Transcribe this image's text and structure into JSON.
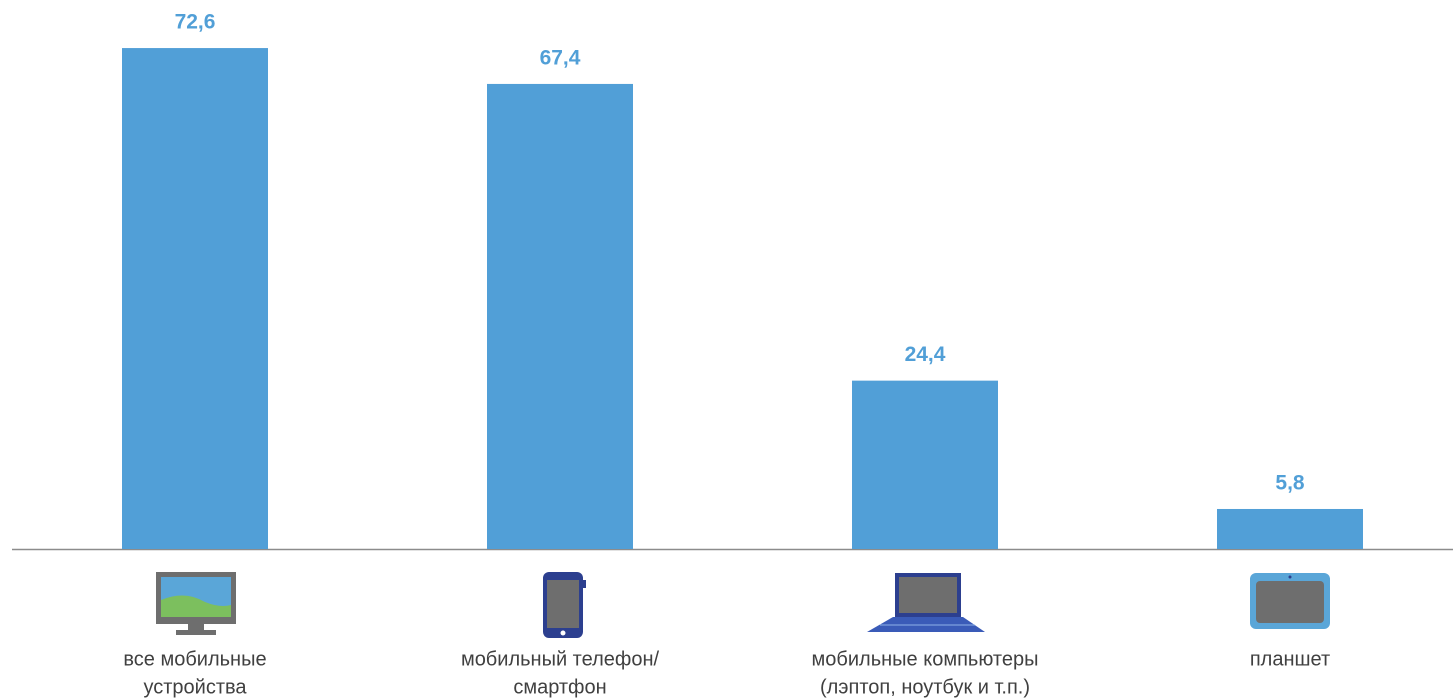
{
  "chart_data": {
    "type": "bar",
    "categories": [
      [
        "все мобильные",
        "устройства"
      ],
      [
        "мобильный телефон/",
        "смартфон"
      ],
      [
        "мобильные компьютеры",
        "(лэптоп, ноутбук и т.п.)"
      ],
      [
        "планшет"
      ]
    ],
    "values": [
      72.6,
      67.4,
      24.4,
      5.8
    ],
    "value_labels": [
      "72,6",
      "67,4",
      "24,4",
      "5,8"
    ],
    "color": "#519fd7",
    "ylim": [
      0,
      75
    ]
  }
}
